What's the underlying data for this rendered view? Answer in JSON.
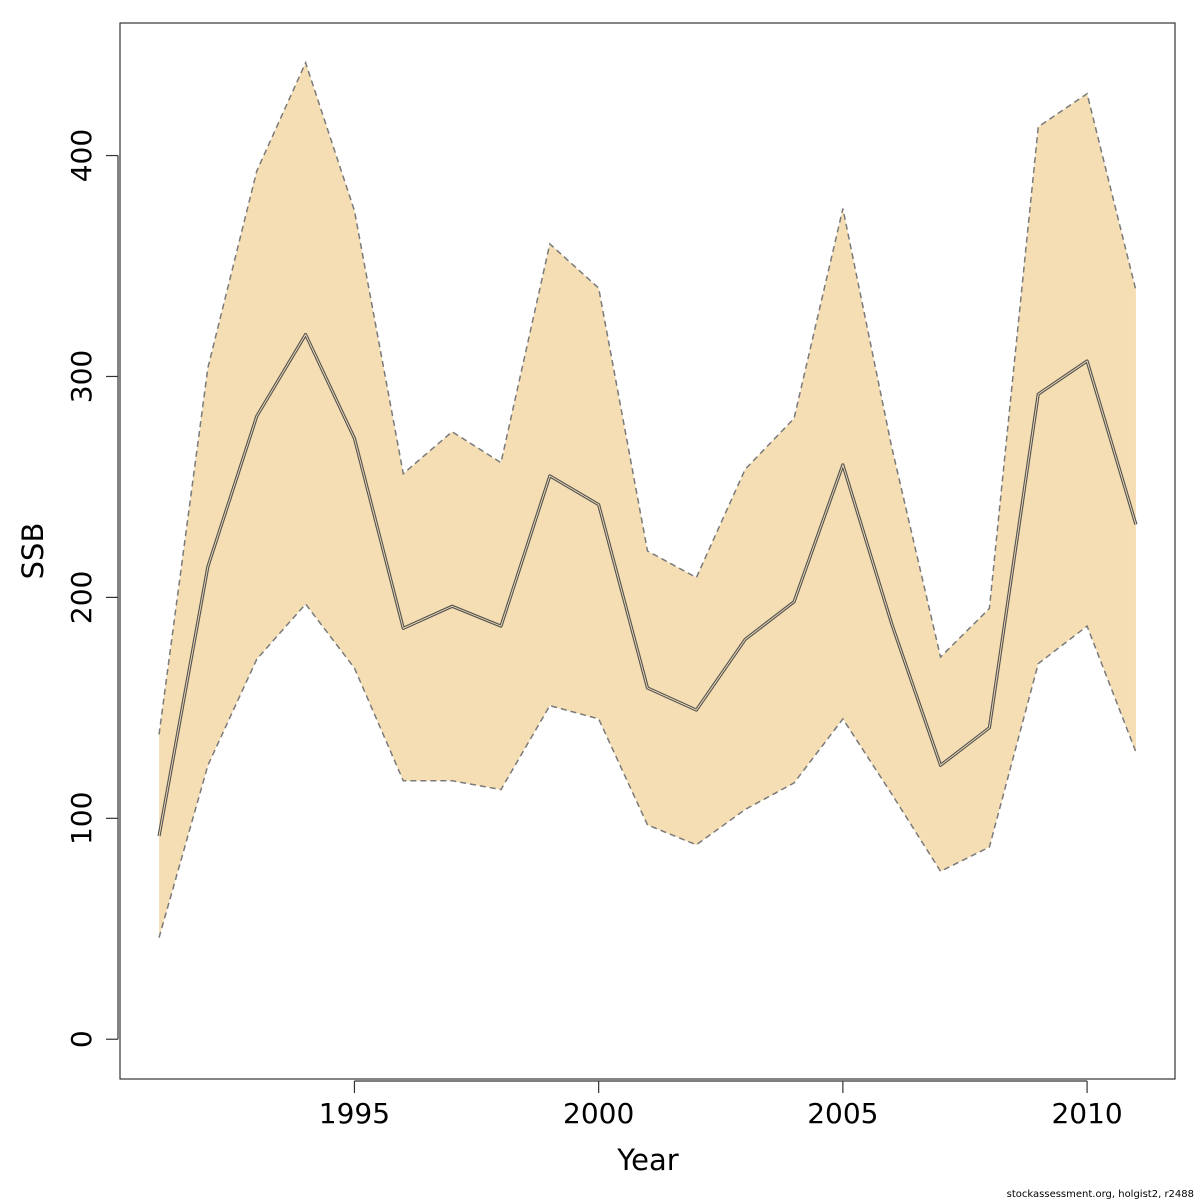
{
  "chart_data": {
    "type": "area",
    "xlabel": "Year",
    "ylabel": "SSB",
    "xlim": [
      1990.2,
      2011.8
    ],
    "ylim": [
      -18,
      460
    ],
    "x_ticks": [
      1995,
      2000,
      2005,
      2010
    ],
    "x_tick_labels": [
      "1995",
      "2000",
      "2005",
      "2010"
    ],
    "y_ticks": [
      0,
      100,
      200,
      300,
      400
    ],
    "y_tick_labels": [
      "0",
      "100",
      "200",
      "300",
      "400"
    ],
    "grid": false,
    "x": [
      1991,
      1992,
      1993,
      1994,
      1995,
      1996,
      1997,
      1998,
      1999,
      2000,
      2001,
      2002,
      2003,
      2004,
      2005,
      2006,
      2007,
      2008,
      2009,
      2010,
      2011
    ],
    "series": [
      {
        "role": "estimate",
        "values": [
          92,
          214,
          282,
          319,
          272,
          186,
          196,
          187,
          255,
          242,
          159,
          149,
          181,
          198,
          260,
          188,
          124,
          141,
          292,
          307,
          233
        ]
      },
      {
        "role": "lower",
        "values": [
          46,
          124,
          172,
          197,
          168,
          117,
          117,
          113,
          151,
          145,
          97,
          88,
          104,
          116,
          145,
          111,
          76,
          87,
          170,
          187,
          130
        ]
      },
      {
        "role": "upper",
        "values": [
          138,
          304,
          393,
          442,
          375,
          256,
          275,
          261,
          360,
          340,
          221,
          209,
          258,
          281,
          376,
          268,
          173,
          195,
          413,
          428,
          339
        ]
      }
    ],
    "colors": {
      "band": "#F5DEB3",
      "line": "#555555",
      "bounds": "#7a7a7a",
      "axis": "#333333"
    }
  },
  "footer": {
    "text": "stockassessment.org, holgist2, r2488"
  }
}
